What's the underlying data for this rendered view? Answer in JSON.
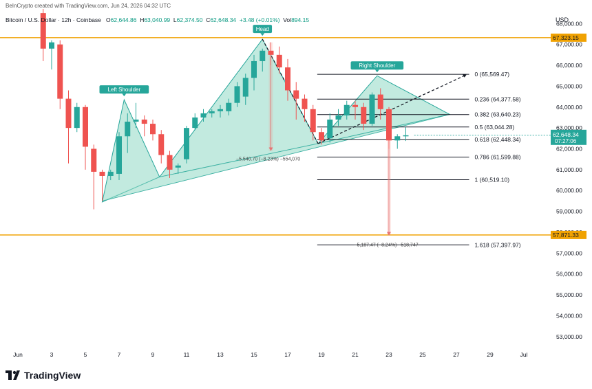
{
  "attribution": "BeInCrypto created with TradingView.com, Jun 24, 2026 04:32 UTC",
  "symbol": "Bitcoin / U.S. Dollar · 12h · Coinbase",
  "ohlc": {
    "o_label": "O",
    "o": "62,644.86",
    "h_label": "H",
    "h": "63,040.99",
    "l_label": "L",
    "l": "62,374.50",
    "c_label": "C",
    "c": "62,648.34",
    "change": "+3.48 (+0.01%)",
    "vol_label": "Vol",
    "vol": "894.15"
  },
  "currency": "USD",
  "brand": "TradingView",
  "colors": {
    "up": "#26a69a",
    "down": "#ef5350",
    "level": "#f0a202",
    "pattern_fill": "#8fd9c4",
    "pattern_stroke": "#26a69a",
    "label_bg": "#26a69a"
  },
  "chart_data": {
    "type": "candlestick",
    "x_ticks": [
      "Jun",
      "3",
      "5",
      "7",
      "9",
      "11",
      "13",
      "15",
      "17",
      "19",
      "21",
      "23",
      "25",
      "27",
      "29",
      "Jul"
    ],
    "y_ticks": [
      "68,000.00",
      "67,000.00",
      "66,000.00",
      "65,000.00",
      "64,000.00",
      "63,000.00",
      "62,000.00",
      "61,000.00",
      "60,000.00",
      "59,000.00",
      "58,000.00",
      "57,000.00",
      "56,000.00",
      "55,000.00",
      "54,000.00",
      "53,000.00"
    ],
    "y_tick_values": [
      68000,
      67000,
      66000,
      65000,
      64000,
      63000,
      62000,
      61000,
      60000,
      59000,
      58000,
      57000,
      56000,
      55000,
      54000,
      53000
    ],
    "ylim": [
      52500,
      68800
    ],
    "xlim_days": [
      1,
      31
    ],
    "candles": [
      {
        "t": 2.5,
        "o": 68500,
        "h": 68700,
        "c": 66800,
        "l": 66200
      },
      {
        "t": 3.0,
        "o": 66800,
        "h": 67200,
        "c": 67100,
        "l": 65800
      },
      {
        "t": 3.5,
        "o": 67000,
        "h": 67200,
        "c": 64400,
        "l": 63900
      },
      {
        "t": 4.0,
        "o": 64400,
        "h": 64800,
        "c": 63000,
        "l": 61300
      },
      {
        "t": 4.5,
        "o": 63000,
        "h": 64200,
        "c": 64000,
        "l": 62800
      },
      {
        "t": 5.0,
        "o": 64000,
        "h": 64100,
        "c": 62100,
        "l": 61000
      },
      {
        "t": 5.5,
        "o": 62000,
        "h": 62200,
        "c": 60900,
        "l": 59100
      },
      {
        "t": 6.0,
        "o": 60900,
        "h": 61000,
        "c": 60700,
        "l": 59500
      },
      {
        "t": 6.5,
        "o": 60700,
        "h": 61000,
        "c": 60900,
        "l": 60500
      },
      {
        "t": 7.0,
        "o": 60800,
        "h": 62800,
        "c": 62600,
        "l": 60500
      },
      {
        "t": 7.5,
        "o": 62600,
        "h": 63700,
        "c": 63300,
        "l": 61800
      },
      {
        "t": 8.0,
        "o": 63300,
        "h": 64200,
        "c": 63400,
        "l": 63000
      },
      {
        "t": 8.5,
        "o": 63400,
        "h": 63600,
        "c": 63200,
        "l": 62600
      },
      {
        "t": 9.0,
        "o": 63200,
        "h": 63400,
        "c": 62700,
        "l": 62400
      },
      {
        "t": 9.5,
        "o": 62700,
        "h": 62900,
        "c": 61700,
        "l": 61300
      },
      {
        "t": 10.0,
        "o": 61700,
        "h": 61900,
        "c": 61000,
        "l": 60600
      },
      {
        "t": 10.5,
        "o": 61100,
        "h": 61300,
        "c": 61200,
        "l": 60800
      },
      {
        "t": 11.0,
        "o": 61500,
        "h": 63100,
        "c": 63000,
        "l": 61300
      },
      {
        "t": 11.5,
        "o": 63000,
        "h": 63700,
        "c": 63500,
        "l": 62900
      },
      {
        "t": 12.0,
        "o": 63500,
        "h": 63900,
        "c": 63700,
        "l": 63300
      },
      {
        "t": 12.5,
        "o": 63700,
        "h": 63900,
        "c": 63800,
        "l": 63500
      },
      {
        "t": 13.0,
        "o": 63800,
        "h": 64100,
        "c": 63900,
        "l": 63500
      },
      {
        "t": 13.5,
        "o": 63800,
        "h": 64400,
        "c": 64200,
        "l": 63600
      },
      {
        "t": 14.0,
        "o": 64200,
        "h": 65200,
        "c": 65000,
        "l": 64000
      },
      {
        "t": 14.5,
        "o": 64500,
        "h": 65600,
        "c": 65400,
        "l": 64100
      },
      {
        "t": 15.0,
        "o": 65400,
        "h": 66500,
        "c": 66200,
        "l": 64800
      },
      {
        "t": 15.5,
        "o": 66200,
        "h": 66800,
        "c": 66700,
        "l": 65700
      },
      {
        "t": 16.0,
        "o": 66700,
        "h": 67100,
        "c": 66500,
        "l": 66000
      },
      {
        "t": 16.5,
        "o": 66500,
        "h": 66900,
        "c": 65900,
        "l": 65600
      },
      {
        "t": 17.0,
        "o": 65900,
        "h": 66300,
        "c": 64800,
        "l": 64300
      },
      {
        "t": 17.5,
        "o": 64800,
        "h": 65200,
        "c": 64400,
        "l": 63400
      },
      {
        "t": 18.0,
        "o": 64400,
        "h": 64600,
        "c": 63900,
        "l": 63300
      },
      {
        "t": 18.5,
        "o": 63900,
        "h": 64100,
        "c": 62800,
        "l": 62400
      },
      {
        "t": 19.0,
        "o": 62800,
        "h": 63000,
        "c": 62400,
        "l": 62200
      },
      {
        "t": 19.5,
        "o": 62500,
        "h": 63700,
        "c": 63400,
        "l": 62300
      },
      {
        "t": 20.0,
        "o": 63400,
        "h": 63900,
        "c": 63600,
        "l": 63100
      },
      {
        "t": 20.5,
        "o": 63600,
        "h": 64300,
        "c": 64100,
        "l": 63400
      },
      {
        "t": 21.0,
        "o": 64100,
        "h": 64300,
        "c": 64000,
        "l": 63400
      },
      {
        "t": 21.5,
        "o": 64000,
        "h": 64200,
        "c": 63200,
        "l": 62900
      },
      {
        "t": 22.0,
        "o": 63200,
        "h": 64700,
        "c": 64600,
        "l": 63100
      },
      {
        "t": 22.5,
        "o": 64600,
        "h": 64900,
        "c": 63900,
        "l": 63400
      },
      {
        "t": 23.0,
        "o": 63900,
        "h": 64000,
        "c": 62400,
        "l": 62000
      },
      {
        "t": 23.5,
        "o": 62400,
        "h": 62700,
        "c": 62600,
        "l": 62000
      },
      {
        "t": 24.0,
        "o": 62645,
        "h": 63041,
        "c": 62648,
        "l": 62374
      }
    ],
    "price_labels": [
      {
        "value": 67323.15,
        "text": "67,323.15",
        "style": "level"
      },
      {
        "value": 62648.34,
        "text": "62,648.34",
        "sub": "07:27:06",
        "style": "current"
      },
      {
        "value": 57871.33,
        "text": "57,871.33",
        "style": "level"
      }
    ],
    "horizontal_levels": [
      67323.15,
      57871.33
    ],
    "fib": {
      "x_start_day": 18.75,
      "x_end_day": 28.0,
      "levels": [
        {
          "ratio": "0",
          "value": 65569.47,
          "text": "0 (65,569.47)"
        },
        {
          "ratio": "0.236",
          "value": 64377.58,
          "text": "0.236 (64,377.58)"
        },
        {
          "ratio": "0.382",
          "value": 63640.23,
          "text": "0.382 (63,640.23)"
        },
        {
          "ratio": "0.5",
          "value": 63044.28,
          "text": "0.5 (63,044.28)"
        },
        {
          "ratio": "0.618",
          "value": 62448.34,
          "text": "0.618 (62,448.34)"
        },
        {
          "ratio": "0.786",
          "value": 61599.88,
          "text": "0.786 (61,599.88)"
        },
        {
          "ratio": "1",
          "value": 60519.1,
          "text": "1 (60,519.10)"
        },
        {
          "ratio": "1.618",
          "value": 57397.97,
          "text": "1.618 (57,397.97)"
        }
      ]
    },
    "pattern": {
      "left_shoulder": [
        {
          "t": 6.0,
          "p": 59450
        },
        {
          "t": 7.3,
          "p": 64350
        },
        {
          "t": 9.4,
          "p": 60650
        }
      ],
      "head": [
        {
          "t": 9.4,
          "p": 60650
        },
        {
          "t": 15.5,
          "p": 67250
        },
        {
          "t": 18.8,
          "p": 62250
        }
      ],
      "right_shoulder": [
        {
          "t": 18.8,
          "p": 62250
        },
        {
          "t": 22.3,
          "p": 65500
        },
        {
          "t": 26.6,
          "p": 63650
        }
      ],
      "neckline": [
        {
          "t": 6.0,
          "p": 59500
        },
        {
          "t": 26.6,
          "p": 63650
        }
      ],
      "dashed_head": [
        {
          "t": 15.5,
          "p": 67250
        },
        {
          "t": 18.8,
          "p": 62250
        }
      ],
      "dashed_projection": [
        {
          "t": 18.8,
          "p": 62250
        },
        {
          "t": 27.6,
          "p": 65550
        }
      ],
      "labels": [
        {
          "text": "Left Shoulder",
          "t": 7.3,
          "p": 64350
        },
        {
          "text": "Head",
          "t": 15.5,
          "p": 67250
        },
        {
          "text": "Right Shoulder",
          "t": 22.3,
          "p": 65500
        }
      ]
    },
    "measurements": [
      {
        "t": 16.0,
        "from": 67100,
        "to": 61900,
        "text": "−5,540.70 (−8.23%) −554,070"
      },
      {
        "t": 23.0,
        "from": 62400,
        "to": 57850,
        "text": "−5,187.47 (−8.24%) −518,747"
      }
    ]
  }
}
